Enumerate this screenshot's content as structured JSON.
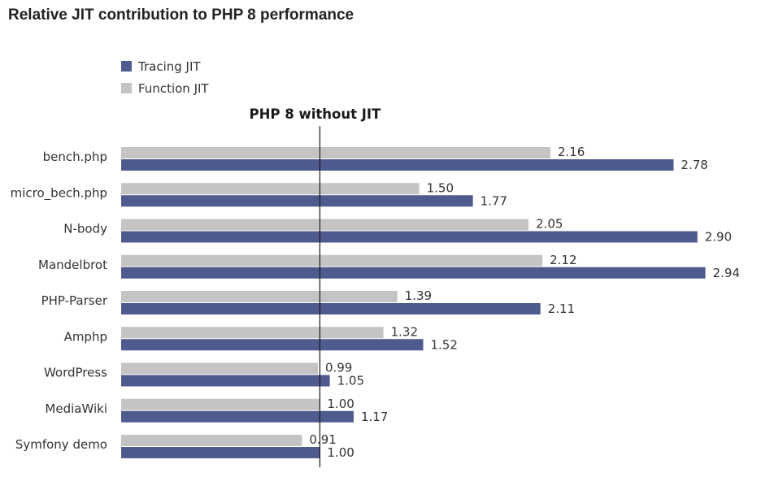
{
  "chart_data": {
    "type": "bar",
    "orientation": "horizontal",
    "title": "Relative JIT contribution to PHP 8 performance",
    "reference_line": {
      "value": 1.0,
      "label": "PHP 8 without JIT"
    },
    "categories": [
      "bench.php",
      "micro_bech.php",
      "N-body",
      "Mandelbrot",
      "PHP-Parser",
      "Amphp",
      "WordPress",
      "MediaWiki",
      "Symfony demo"
    ],
    "series": [
      {
        "name": "Tracing JIT",
        "color": "#4f5a8e",
        "values": [
          2.78,
          1.77,
          2.9,
          2.94,
          2.11,
          1.52,
          1.05,
          1.17,
          1.0
        ],
        "labels": [
          "2.78",
          "1.77",
          "2.90",
          "2.94",
          "2.11",
          "1.52",
          "1.05",
          "1.17",
          "1.00"
        ]
      },
      {
        "name": "Function JIT",
        "color": "#c4c4c4",
        "values": [
          2.16,
          1.5,
          2.05,
          2.12,
          1.39,
          1.32,
          0.99,
          1.0,
          0.91
        ],
        "labels": [
          "2.16",
          "1.50",
          "2.05",
          "2.12",
          "1.39",
          "1.32",
          "0.99",
          "1.00",
          "0.91"
        ]
      }
    ],
    "xlim": [
      0,
      3.0
    ],
    "grid": false,
    "legend_position": "top-left"
  }
}
